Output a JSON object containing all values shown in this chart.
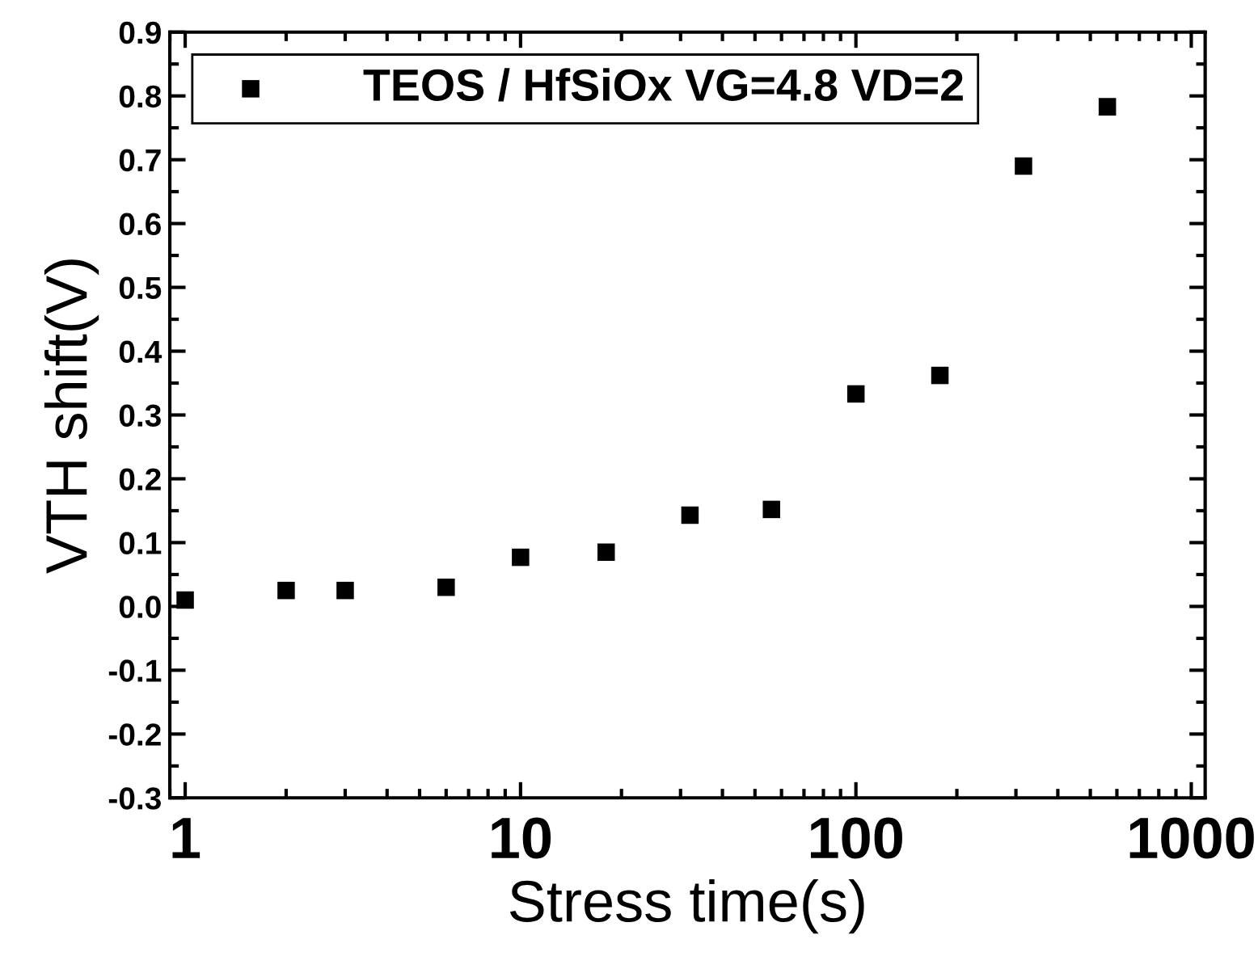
{
  "chart_data": {
    "type": "scatter",
    "xlabel": "Stress time(s)",
    "ylabel": "VTH shift(V)",
    "x": [
      1,
      2,
      3,
      6,
      10,
      18,
      32,
      56,
      100,
      178,
      316,
      562
    ],
    "series": [
      {
        "name": "TEOS / HfSiOx VG=4.8 VD=2",
        "color": "#000000",
        "values": [
          0.01,
          0.025,
          0.025,
          0.03,
          0.077,
          0.085,
          0.143,
          0.152,
          0.333,
          0.362,
          0.69,
          0.783
        ]
      }
    ],
    "log": "x",
    "xlim": [
      0.9,
      1100
    ],
    "xticks": [
      1,
      10,
      100,
      1000
    ],
    "ylim": [
      -0.3,
      0.9
    ],
    "yticks": [
      -0.3,
      -0.2,
      -0.1,
      {
        "value": 0,
        "label": "0.0"
      },
      0.1,
      0.2,
      0.3,
      0.4,
      0.5,
      0.6,
      0.7,
      0.8,
      0.9
    ],
    "marker": "square",
    "legend": "top left",
    "grid": false
  }
}
